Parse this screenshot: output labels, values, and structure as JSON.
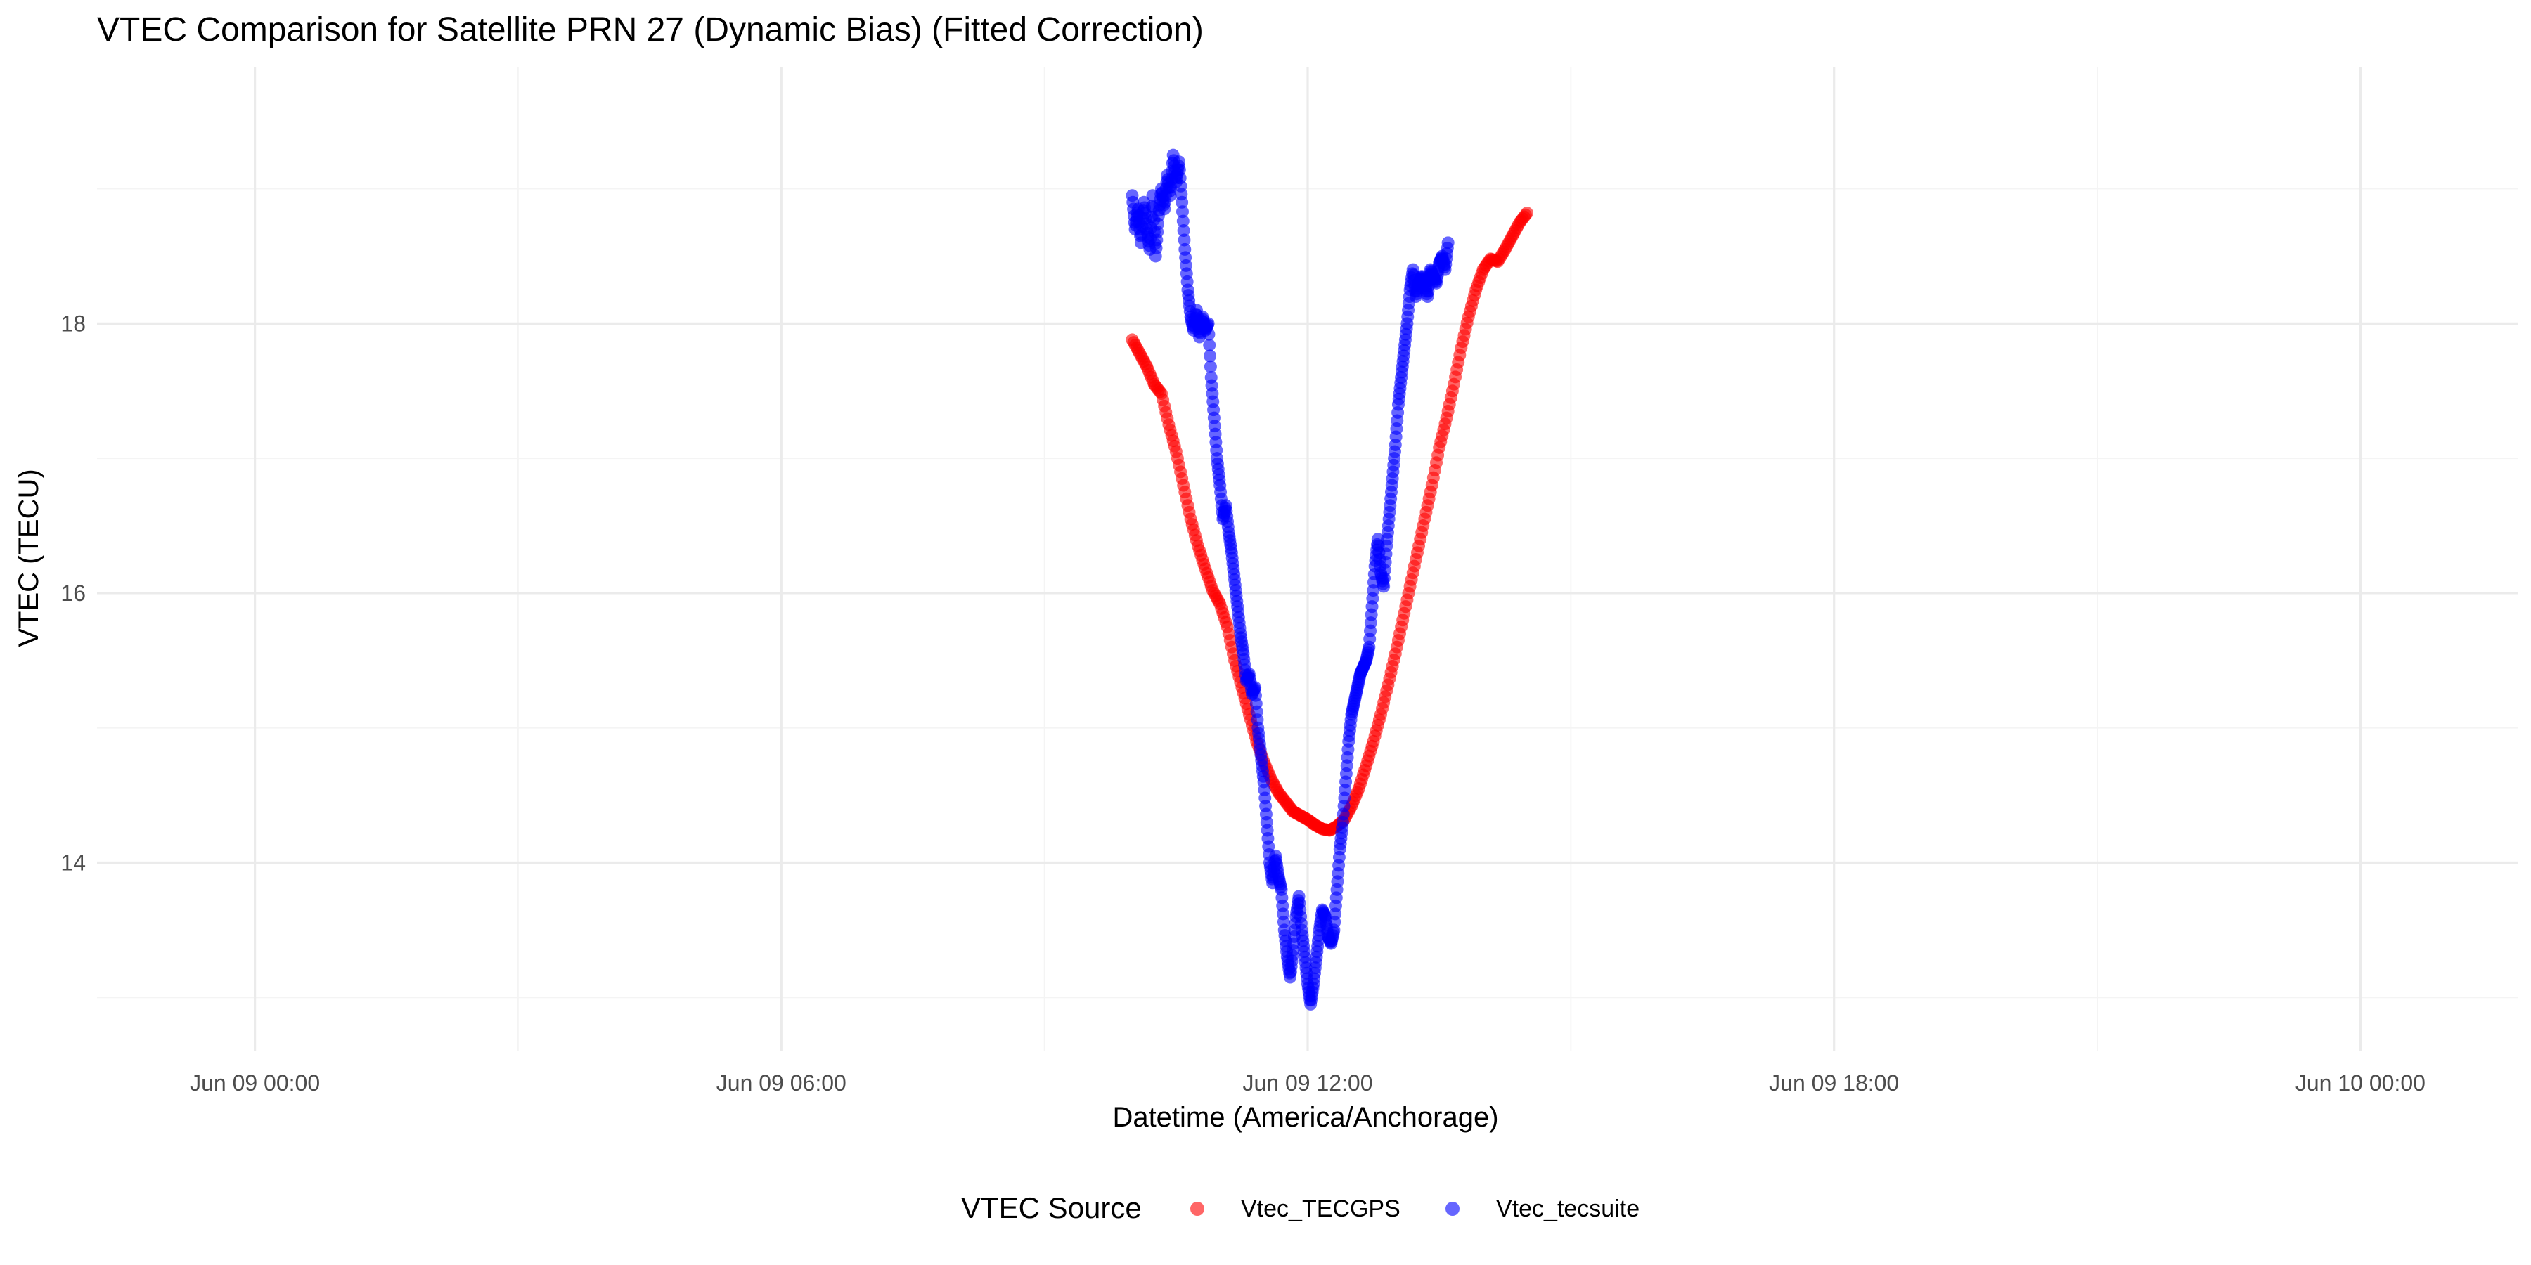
{
  "chart_data": {
    "type": "scatter",
    "title": "VTEC Comparison for Satellite PRN 27 (Dynamic Bias)   (Fitted Correction)",
    "xlabel": "Datetime (America/Anchorage)",
    "ylabel": "VTEC (TECU)",
    "x_axis_type": "datetime",
    "xlim": [
      "2024-06-08T22:12",
      "2024-06-10T01:48"
    ],
    "ylim": [
      12.6,
      19.9
    ],
    "x_ticks": [
      "2024-06-09T00:00",
      "2024-06-09T06:00",
      "2024-06-09T12:00",
      "2024-06-09T18:00",
      "2024-06-10T00:00"
    ],
    "x_tick_labels": [
      "Jun 09 00:00",
      "Jun 09 06:00",
      "Jun 09 12:00",
      "Jun 09 18:00",
      "Jun 10 00:00"
    ],
    "y_ticks": [
      14,
      16,
      18
    ],
    "y_tick_labels": [
      "14",
      "16",
      "18"
    ],
    "grid": true,
    "legend": {
      "title": "VTEC Source",
      "position": "bottom"
    },
    "series": [
      {
        "name": "Vtec_TECGPS",
        "color": "#ff0000",
        "points": [
          [
            "2024-06-09T10:00",
            17.88
          ],
          [
            "2024-06-09T10:05",
            17.78
          ],
          [
            "2024-06-09T10:10",
            17.68
          ],
          [
            "2024-06-09T10:15",
            17.55
          ],
          [
            "2024-06-09T10:20",
            17.48
          ],
          [
            "2024-06-09T10:25",
            17.25
          ],
          [
            "2024-06-09T10:30",
            17.05
          ],
          [
            "2024-06-09T10:35",
            16.8
          ],
          [
            "2024-06-09T10:40",
            16.55
          ],
          [
            "2024-06-09T10:45",
            16.35
          ],
          [
            "2024-06-09T10:50",
            16.18
          ],
          [
            "2024-06-09T10:55",
            16.02
          ],
          [
            "2024-06-09T11:00",
            15.92
          ],
          [
            "2024-06-09T11:05",
            15.75
          ],
          [
            "2024-06-09T11:10",
            15.5
          ],
          [
            "2024-06-09T11:15",
            15.3
          ],
          [
            "2024-06-09T11:20",
            15.1
          ],
          [
            "2024-06-09T11:25",
            14.9
          ],
          [
            "2024-06-09T11:30",
            14.75
          ],
          [
            "2024-06-09T11:35",
            14.62
          ],
          [
            "2024-06-09T11:40",
            14.52
          ],
          [
            "2024-06-09T11:45",
            14.45
          ],
          [
            "2024-06-09T11:50",
            14.38
          ],
          [
            "2024-06-09T11:55",
            14.35
          ],
          [
            "2024-06-09T12:00",
            14.32
          ],
          [
            "2024-06-09T12:05",
            14.28
          ],
          [
            "2024-06-09T12:10",
            14.25
          ],
          [
            "2024-06-09T12:15",
            14.24
          ],
          [
            "2024-06-09T12:20",
            14.27
          ],
          [
            "2024-06-09T12:25",
            14.32
          ],
          [
            "2024-06-09T12:30",
            14.42
          ],
          [
            "2024-06-09T12:35",
            14.55
          ],
          [
            "2024-06-09T12:40",
            14.72
          ],
          [
            "2024-06-09T12:45",
            14.9
          ],
          [
            "2024-06-09T12:50",
            15.1
          ],
          [
            "2024-06-09T12:55",
            15.32
          ],
          [
            "2024-06-09T13:00",
            15.55
          ],
          [
            "2024-06-09T13:05",
            15.8
          ],
          [
            "2024-06-09T13:10",
            16.05
          ],
          [
            "2024-06-09T13:15",
            16.3
          ],
          [
            "2024-06-09T13:20",
            16.55
          ],
          [
            "2024-06-09T13:25",
            16.8
          ],
          [
            "2024-06-09T13:30",
            17.08
          ],
          [
            "2024-06-09T13:35",
            17.3
          ],
          [
            "2024-06-09T13:40",
            17.55
          ],
          [
            "2024-06-09T13:45",
            17.82
          ],
          [
            "2024-06-09T13:50",
            18.05
          ],
          [
            "2024-06-09T13:55",
            18.25
          ],
          [
            "2024-06-09T14:00",
            18.4
          ],
          [
            "2024-06-09T14:05",
            18.48
          ],
          [
            "2024-06-09T14:10",
            18.46
          ],
          [
            "2024-06-09T14:15",
            18.55
          ],
          [
            "2024-06-09T14:20",
            18.65
          ],
          [
            "2024-06-09T14:25",
            18.75
          ],
          [
            "2024-06-09T14:30",
            18.82
          ]
        ]
      },
      {
        "name": "Vtec_tecsuite",
        "color": "#0000ff",
        "points": [
          [
            "2024-06-09T10:00",
            18.95
          ],
          [
            "2024-06-09T10:02",
            18.7
          ],
          [
            "2024-06-09T10:04",
            18.85
          ],
          [
            "2024-06-09T10:06",
            18.6
          ],
          [
            "2024-06-09T10:08",
            18.9
          ],
          [
            "2024-06-09T10:10",
            18.7
          ],
          [
            "2024-06-09T10:12",
            18.55
          ],
          [
            "2024-06-09T10:14",
            18.95
          ],
          [
            "2024-06-09T10:16",
            18.5
          ],
          [
            "2024-06-09T10:18",
            18.8
          ],
          [
            "2024-06-09T10:20",
            19.0
          ],
          [
            "2024-06-09T10:22",
            18.85
          ],
          [
            "2024-06-09T10:24",
            19.1
          ],
          [
            "2024-06-09T10:26",
            18.95
          ],
          [
            "2024-06-09T10:28",
            19.25
          ],
          [
            "2024-06-09T10:30",
            19.05
          ],
          [
            "2024-06-09T10:32",
            19.2
          ],
          [
            "2024-06-09T10:34",
            18.9
          ],
          [
            "2024-06-09T10:36",
            18.55
          ],
          [
            "2024-06-09T10:38",
            18.25
          ],
          [
            "2024-06-09T10:40",
            18.05
          ],
          [
            "2024-06-09T10:42",
            17.95
          ],
          [
            "2024-06-09T10:44",
            18.1
          ],
          [
            "2024-06-09T10:46",
            17.9
          ],
          [
            "2024-06-09T10:48",
            18.05
          ],
          [
            "2024-06-09T10:50",
            17.95
          ],
          [
            "2024-06-09T10:52",
            18.0
          ],
          [
            "2024-06-09T10:54",
            17.6
          ],
          [
            "2024-06-09T10:56",
            17.3
          ],
          [
            "2024-06-09T10:58",
            17.0
          ],
          [
            "2024-06-09T11:00",
            16.8
          ],
          [
            "2024-06-09T11:02",
            16.55
          ],
          [
            "2024-06-09T11:04",
            16.65
          ],
          [
            "2024-06-09T11:06",
            16.45
          ],
          [
            "2024-06-09T11:08",
            16.3
          ],
          [
            "2024-06-09T11:10",
            16.1
          ],
          [
            "2024-06-09T11:12",
            15.9
          ],
          [
            "2024-06-09T11:14",
            15.7
          ],
          [
            "2024-06-09T11:16",
            15.55
          ],
          [
            "2024-06-09T11:18",
            15.35
          ],
          [
            "2024-06-09T11:20",
            15.4
          ],
          [
            "2024-06-09T11:22",
            15.25
          ],
          [
            "2024-06-09T11:24",
            15.3
          ],
          [
            "2024-06-09T11:26",
            15.0
          ],
          [
            "2024-06-09T11:28",
            14.8
          ],
          [
            "2024-06-09T11:30",
            14.6
          ],
          [
            "2024-06-09T11:32",
            14.3
          ],
          [
            "2024-06-09T11:34",
            14.0
          ],
          [
            "2024-06-09T11:36",
            13.85
          ],
          [
            "2024-06-09T11:38",
            14.05
          ],
          [
            "2024-06-09T11:40",
            13.9
          ],
          [
            "2024-06-09T11:42",
            13.8
          ],
          [
            "2024-06-09T11:44",
            13.5
          ],
          [
            "2024-06-09T11:46",
            13.3
          ],
          [
            "2024-06-09T11:48",
            13.15
          ],
          [
            "2024-06-09T11:50",
            13.35
          ],
          [
            "2024-06-09T11:52",
            13.6
          ],
          [
            "2024-06-09T11:54",
            13.75
          ],
          [
            "2024-06-09T11:56",
            13.5
          ],
          [
            "2024-06-09T11:58",
            13.3
          ],
          [
            "2024-06-09T12:00",
            13.1
          ],
          [
            "2024-06-09T12:02",
            12.95
          ],
          [
            "2024-06-09T12:04",
            13.1
          ],
          [
            "2024-06-09T12:06",
            13.3
          ],
          [
            "2024-06-09T12:08",
            13.5
          ],
          [
            "2024-06-09T12:10",
            13.65
          ],
          [
            "2024-06-09T12:12",
            13.6
          ],
          [
            "2024-06-09T12:14",
            13.45
          ],
          [
            "2024-06-09T12:16",
            13.4
          ],
          [
            "2024-06-09T12:18",
            13.5
          ],
          [
            "2024-06-09T12:20",
            13.8
          ],
          [
            "2024-06-09T12:22",
            14.1
          ],
          [
            "2024-06-09T12:24",
            14.3
          ],
          [
            "2024-06-09T12:26",
            14.6
          ],
          [
            "2024-06-09T12:28",
            14.9
          ],
          [
            "2024-06-09T12:30",
            15.1
          ],
          [
            "2024-06-09T12:32",
            15.2
          ],
          [
            "2024-06-09T12:34",
            15.3
          ],
          [
            "2024-06-09T12:36",
            15.4
          ],
          [
            "2024-06-09T12:38",
            15.45
          ],
          [
            "2024-06-09T12:40",
            15.5
          ],
          [
            "2024-06-09T12:42",
            15.6
          ],
          [
            "2024-06-09T12:44",
            15.9
          ],
          [
            "2024-06-09T12:46",
            16.2
          ],
          [
            "2024-06-09T12:48",
            16.4
          ],
          [
            "2024-06-09T12:50",
            16.15
          ],
          [
            "2024-06-09T12:52",
            16.05
          ],
          [
            "2024-06-09T12:54",
            16.35
          ],
          [
            "2024-06-09T12:56",
            16.6
          ],
          [
            "2024-06-09T12:58",
            16.85
          ],
          [
            "2024-06-09T13:00",
            17.1
          ],
          [
            "2024-06-09T13:02",
            17.4
          ],
          [
            "2024-06-09T13:04",
            17.6
          ],
          [
            "2024-06-09T13:06",
            17.8
          ],
          [
            "2024-06-09T13:08",
            18.0
          ],
          [
            "2024-06-09T13:10",
            18.25
          ],
          [
            "2024-06-09T13:12",
            18.4
          ],
          [
            "2024-06-09T13:14",
            18.2
          ],
          [
            "2024-06-09T13:16",
            18.3
          ],
          [
            "2024-06-09T13:18",
            18.35
          ],
          [
            "2024-06-09T13:20",
            18.3
          ],
          [
            "2024-06-09T13:22",
            18.2
          ],
          [
            "2024-06-09T13:24",
            18.4
          ],
          [
            "2024-06-09T13:26",
            18.35
          ],
          [
            "2024-06-09T13:28",
            18.3
          ],
          [
            "2024-06-09T13:30",
            18.45
          ],
          [
            "2024-06-09T13:32",
            18.5
          ],
          [
            "2024-06-09T13:34",
            18.4
          ],
          [
            "2024-06-09T13:36",
            18.6
          ]
        ]
      }
    ]
  }
}
